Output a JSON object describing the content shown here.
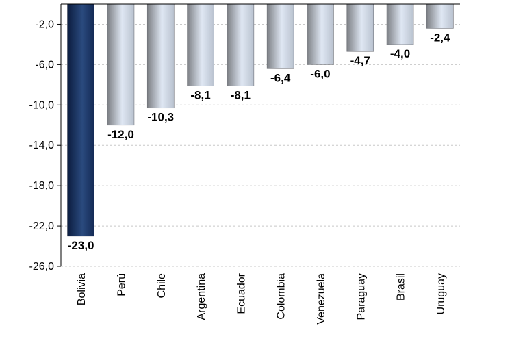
{
  "chart_data": {
    "type": "bar",
    "categories": [
      "Bolivia",
      "Perú",
      "Chile",
      "Argentina",
      "Ecuador",
      "Colombia",
      "Venezuela",
      "Paraguay",
      "Brasil",
      "Uruguay"
    ],
    "values": [
      -23.0,
      -12.0,
      -10.3,
      -8.1,
      -8.1,
      -6.4,
      -6.0,
      -4.7,
      -4.0,
      -2.4
    ],
    "value_labels": [
      "-23,0",
      "-12,0",
      "-10,3",
      "-8,1",
      "-8,1",
      "-6,4",
      "-6,0",
      "-4,7",
      "-4,0",
      "-2,4"
    ],
    "y_ticks": [
      -2.0,
      -6.0,
      -10.0,
      -14.0,
      -18.0,
      -22.0,
      -26.0
    ],
    "y_tick_labels": [
      "-2,0",
      "-6,0",
      "-10,0",
      "-14,0",
      "-18,0",
      "-22,0",
      "-26,0"
    ],
    "ylim": [
      -26,
      0
    ],
    "grid": true,
    "highlight_category": "Bolivia",
    "colors": {
      "highlight_dark": "#0c1d40",
      "highlight_light": "#2a4a7e",
      "bar_dark": "#7c7f84",
      "bar_light": "#dfe7f3",
      "grid": "#c8c8c8",
      "axis": "#000000"
    }
  }
}
